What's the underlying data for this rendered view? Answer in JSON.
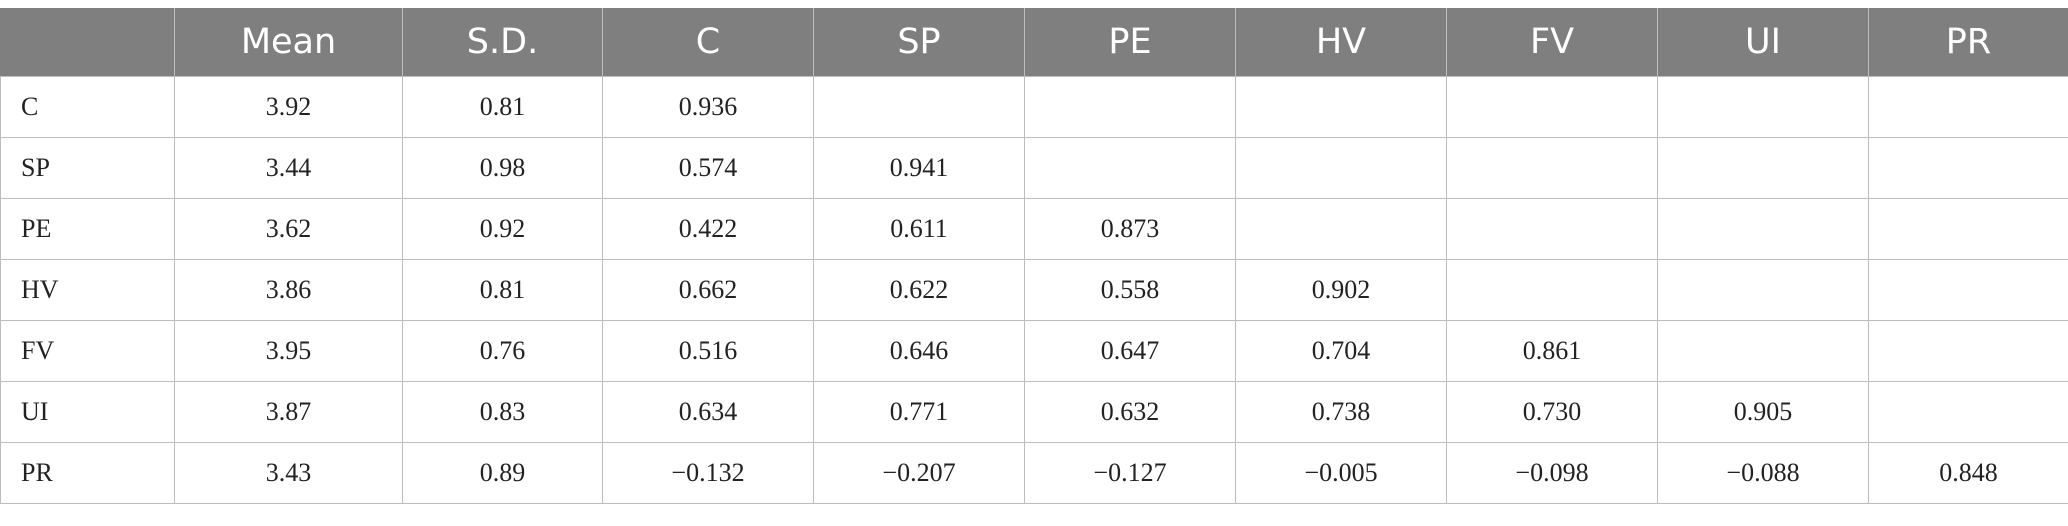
{
  "table": {
    "columns": [
      "",
      "Mean",
      "S.D.",
      "C",
      "SP",
      "PE",
      "HV",
      "FV",
      "UI",
      "PR"
    ],
    "rows": [
      [
        "C",
        "3.92",
        "0.81",
        "0.936",
        "",
        "",
        "",
        "",
        "",
        ""
      ],
      [
        "SP",
        "3.44",
        "0.98",
        "0.574",
        "0.941",
        "",
        "",
        "",
        "",
        ""
      ],
      [
        "PE",
        "3.62",
        "0.92",
        "0.422",
        "0.611",
        "0.873",
        "",
        "",
        "",
        ""
      ],
      [
        "HV",
        "3.86",
        "0.81",
        "0.662",
        "0.622",
        "0.558",
        "0.902",
        "",
        "",
        ""
      ],
      [
        "FV",
        "3.95",
        "0.76",
        "0.516",
        "0.646",
        "0.647",
        "0.704",
        "0.861",
        "",
        ""
      ],
      [
        "UI",
        "3.87",
        "0.83",
        "0.634",
        "0.771",
        "0.632",
        "0.738",
        "0.730",
        "0.905",
        ""
      ],
      [
        "PR",
        "3.43",
        "0.89",
        "−0.132",
        "−0.207",
        "−0.127",
        "−0.005",
        "−0.098",
        "−0.088",
        "0.848"
      ]
    ]
  }
}
